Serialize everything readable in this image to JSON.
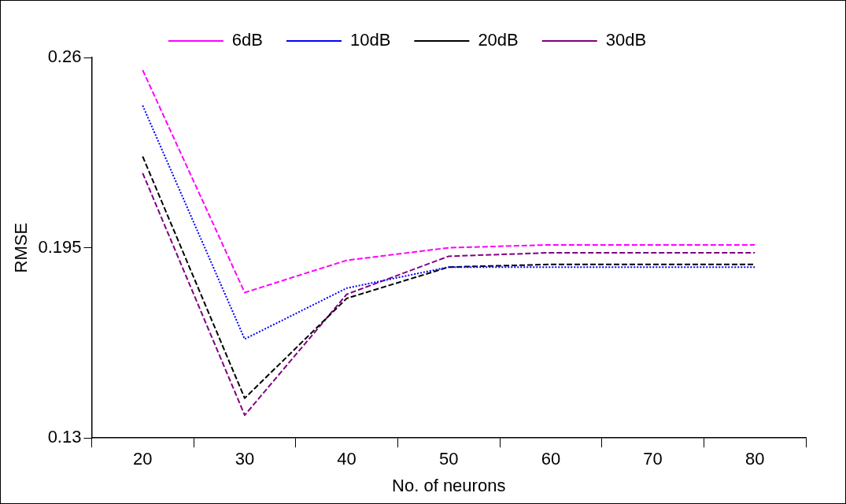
{
  "chart_data": {
    "type": "line",
    "xlabel": "No. of neurons",
    "ylabel": "RMSE",
    "categories": [
      "20",
      "30",
      "40",
      "50",
      "60",
      "70",
      "80"
    ],
    "series": [
      {
        "name": "6dB",
        "color": "#ff00ff",
        "line_style": "dashed",
        "values": [
          0.2557,
          0.1797,
          0.1907,
          0.195,
          0.196,
          0.196,
          0.196
        ]
      },
      {
        "name": "10dB",
        "color": "#0000ff",
        "line_style": "dotted",
        "values": [
          0.2436,
          0.1638,
          0.1812,
          0.1884,
          0.1884,
          0.1884,
          0.1884
        ]
      },
      {
        "name": "20dB",
        "color": "#000000",
        "line_style": "dashed",
        "values": [
          0.2262,
          0.1436,
          0.1777,
          0.1884,
          0.1893,
          0.1893,
          0.1893
        ]
      },
      {
        "name": "30dB",
        "color": "#800080",
        "line_style": "dashed",
        "values": [
          0.2205,
          0.1378,
          0.1791,
          0.1921,
          0.1933,
          0.1933,
          0.1933
        ]
      }
    ],
    "ylim": [
      0.13,
      0.26
    ],
    "yticks": [
      0.13,
      0.195,
      0.26
    ],
    "grid": false,
    "legend": "top",
    "marker": "none"
  }
}
